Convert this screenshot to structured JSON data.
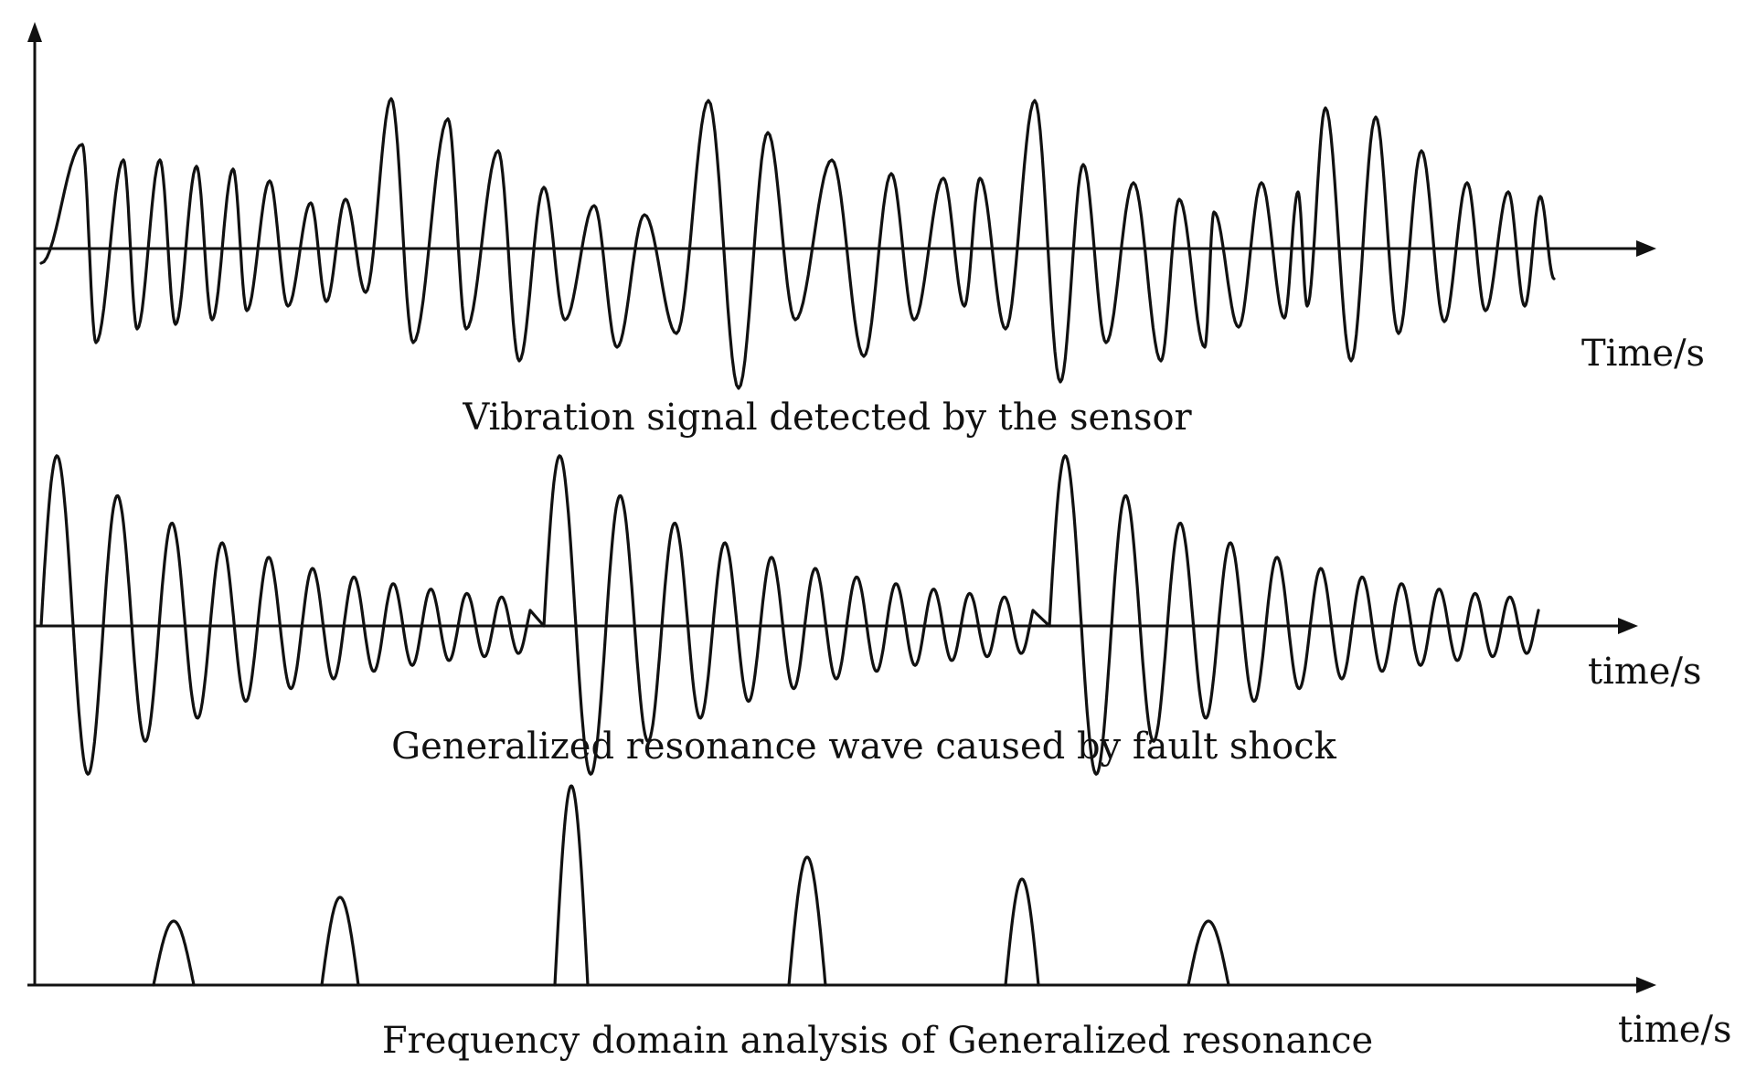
{
  "panels": [
    {
      "id": "vibration",
      "caption": "Vibration signal detected by the sensor",
      "axis_label": "Time/s"
    },
    {
      "id": "resonance",
      "caption": "Generalized resonance wave caused by fault shock",
      "axis_label": "time/s"
    },
    {
      "id": "spectrum",
      "caption": "Frequency domain analysis of Generalized resonance",
      "axis_label": "time/s"
    }
  ],
  "colors": {
    "line": "#111111",
    "background": "#ffffff"
  }
}
